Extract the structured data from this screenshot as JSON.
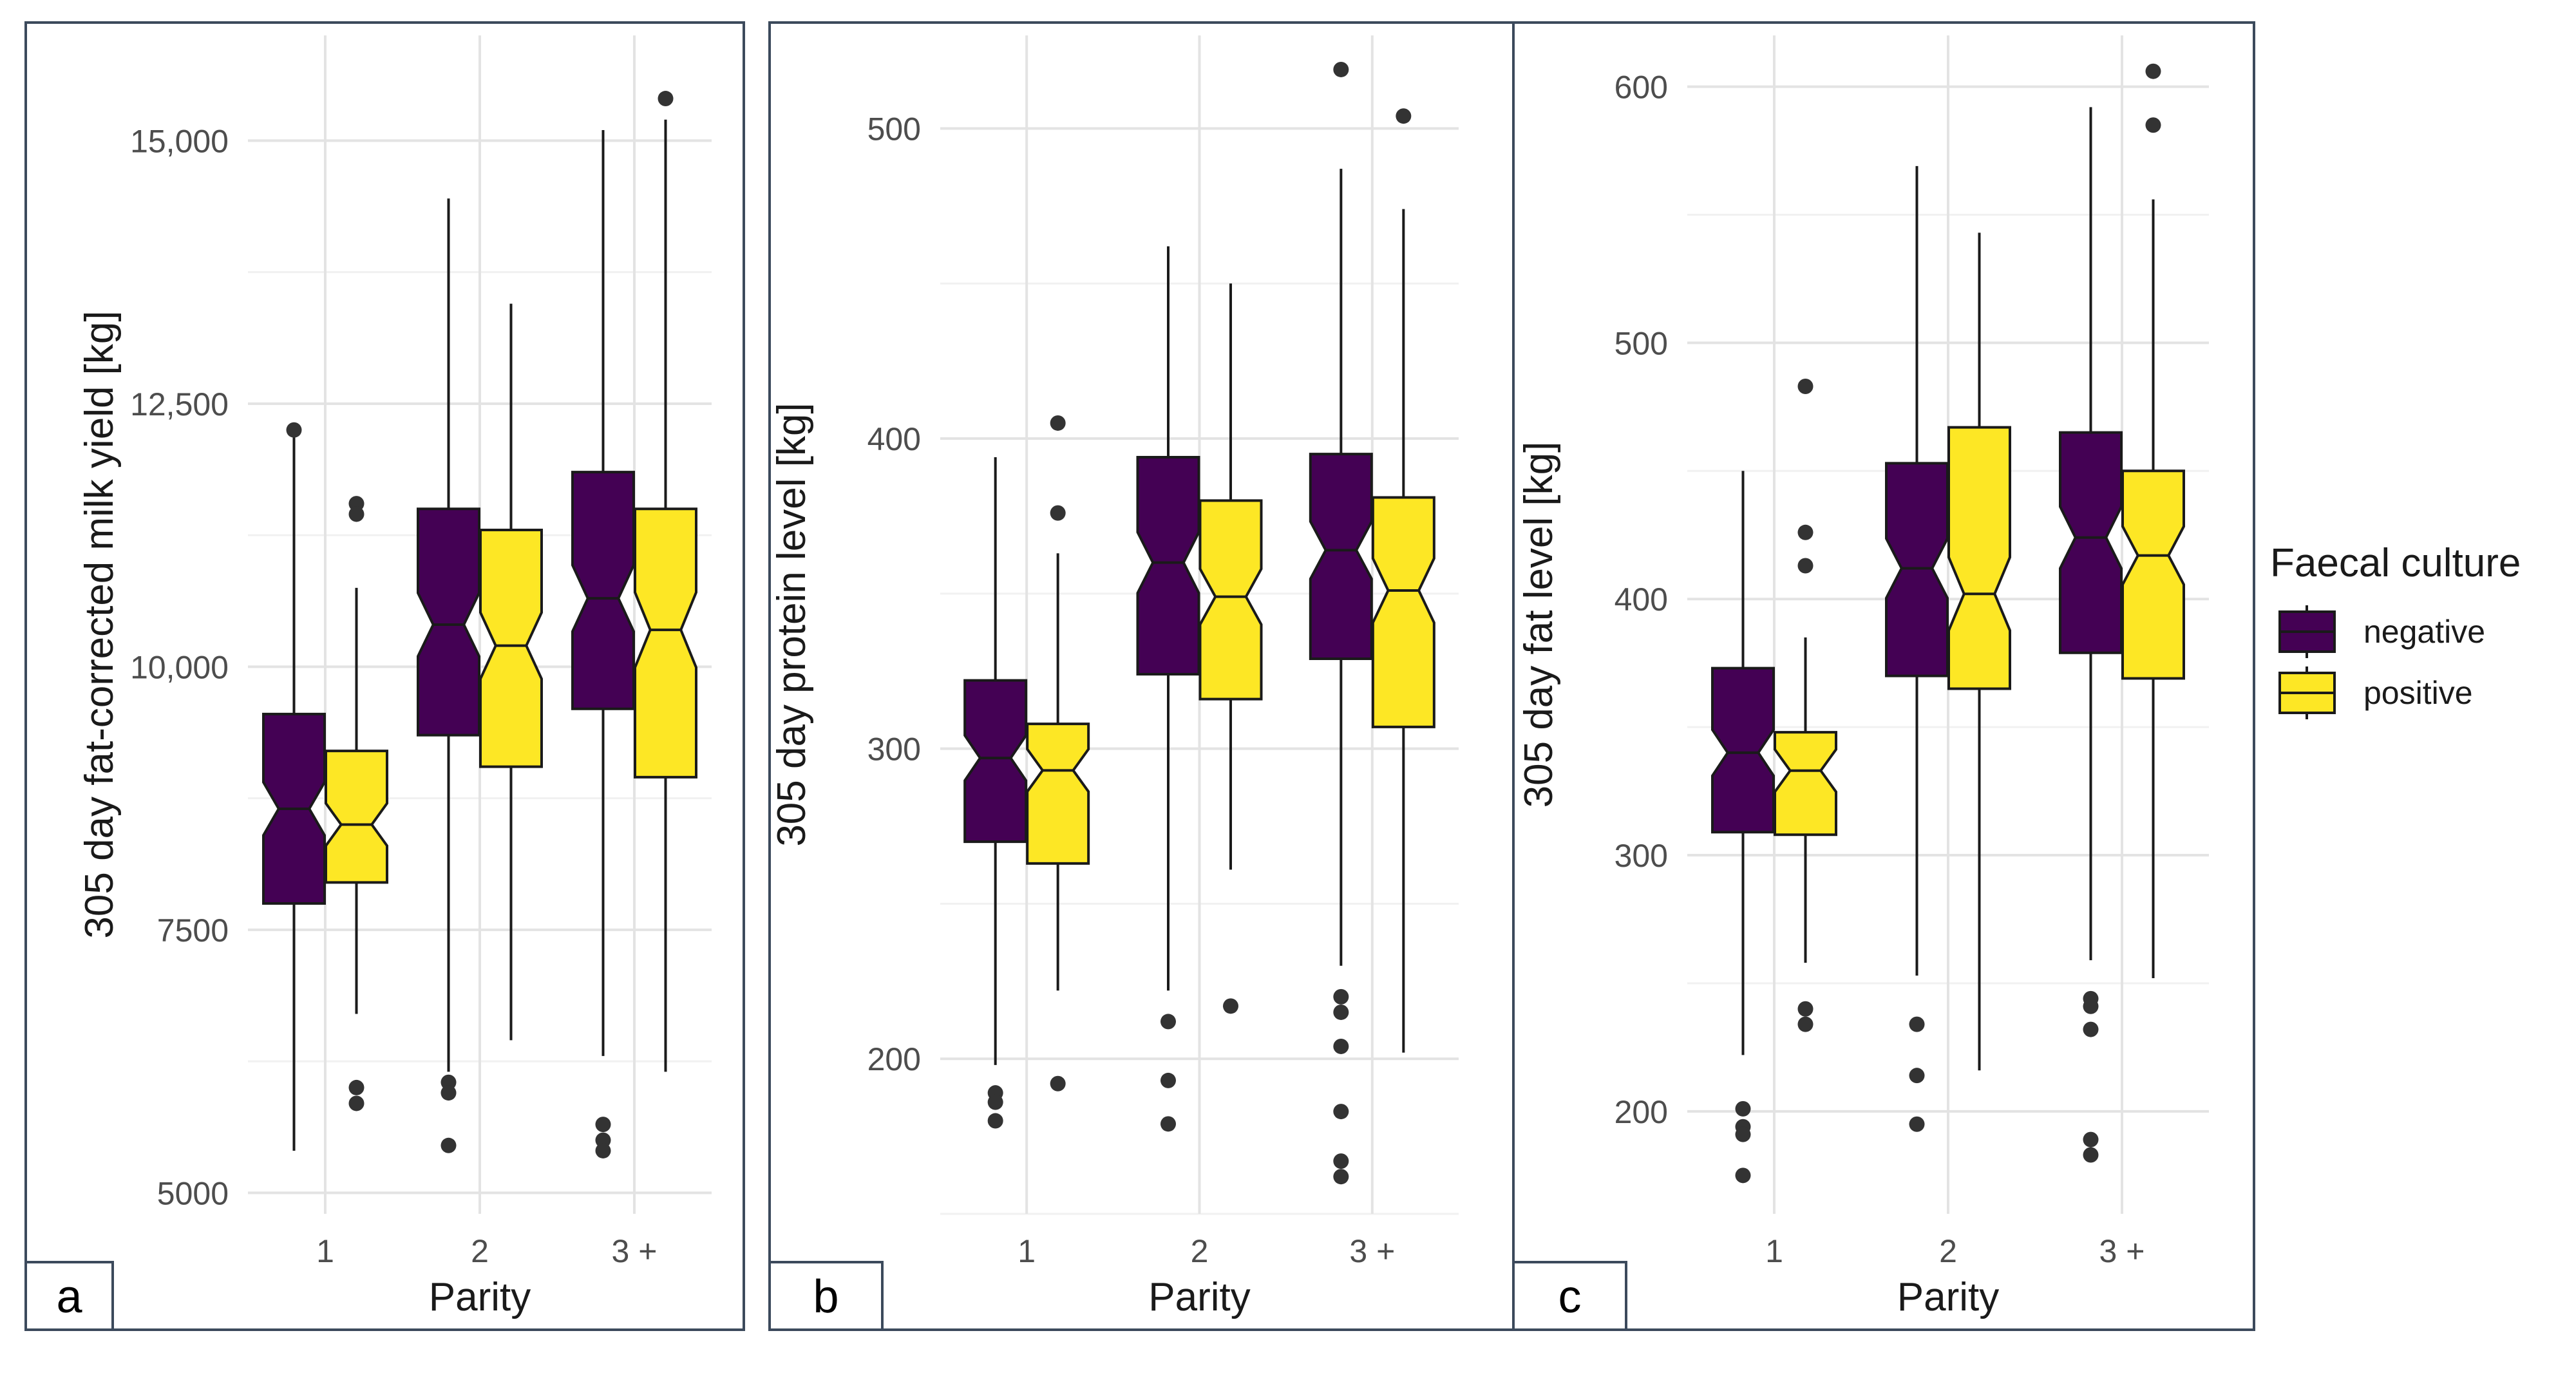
{
  "legend": {
    "title": "Faecal culture",
    "placement": "right",
    "items": [
      {
        "label": "negative",
        "color": "#440154"
      },
      {
        "label": "positive",
        "color": "#FDE725"
      }
    ]
  },
  "chart_data": [
    {
      "type": "boxplot",
      "notched": true,
      "panel_label": "a",
      "xlabel": "Parity",
      "ylabel": "305 day fat-corrected milk yield [kg]",
      "categories": [
        "1",
        "2",
        "3 +"
      ],
      "ylim": [
        4800,
        16000
      ],
      "yticks": [
        5000,
        7500,
        10000,
        12500,
        15000
      ],
      "ytick_labels": [
        "5000",
        "7500",
        "10,000",
        "12,500",
        "15,000"
      ],
      "grid": true,
      "series": [
        {
          "name": "negative",
          "color": "#440154",
          "boxes": [
            {
              "whisker_low": 5400,
              "q1": 7750,
              "median": 8650,
              "q3": 9550,
              "whisker_high": 12200,
              "outliers": [
                12250
              ]
            },
            {
              "whisker_low": 6150,
              "q1": 9350,
              "median": 10400,
              "q3": 11500,
              "whisker_high": 14450,
              "outliers": [
                6050,
                5950,
                5450
              ]
            },
            {
              "whisker_low": 6300,
              "q1": 9600,
              "median": 10650,
              "q3": 11850,
              "whisker_high": 15100,
              "outliers": [
                5650,
                5500,
                5400
              ]
            }
          ]
        },
        {
          "name": "positive",
          "color": "#FDE725",
          "boxes": [
            {
              "whisker_low": 6700,
              "q1": 7950,
              "median": 8500,
              "q3": 9200,
              "whisker_high": 10750,
              "outliers": [
                11550,
                11450,
                6000,
                5850
              ]
            },
            {
              "whisker_low": 6450,
              "q1": 9050,
              "median": 10200,
              "q3": 11300,
              "whisker_high": 13450,
              "outliers": []
            },
            {
              "whisker_low": 6150,
              "q1": 8950,
              "median": 10350,
              "q3": 11500,
              "whisker_high": 15200,
              "outliers": [
                15400
              ]
            }
          ]
        }
      ]
    },
    {
      "type": "boxplot",
      "notched": true,
      "panel_label": "b",
      "xlabel": "Parity",
      "ylabel": "305 day protein level [kg]",
      "categories": [
        "1",
        "2",
        "3 +"
      ],
      "ylim": [
        150,
        530
      ],
      "yticks": [
        200,
        300,
        400,
        500
      ],
      "ytick_labels": [
        "200",
        "300",
        "400",
        "500"
      ],
      "grid": true,
      "series": [
        {
          "name": "negative",
          "color": "#440154",
          "boxes": [
            {
              "whisker_low": 198,
              "q1": 270,
              "median": 297,
              "q3": 322,
              "whisker_high": 394,
              "outliers": [
                189,
                186,
                180
              ]
            },
            {
              "whisker_low": 222,
              "q1": 324,
              "median": 360,
              "q3": 394,
              "whisker_high": 462,
              "outliers": [
                212,
                193,
                179
              ]
            },
            {
              "whisker_low": 230,
              "q1": 329,
              "median": 364,
              "q3": 395,
              "whisker_high": 487,
              "outliers": [
                519,
                220,
                215,
                204,
                183,
                167,
                162
              ]
            }
          ]
        },
        {
          "name": "positive",
          "color": "#FDE725",
          "boxes": [
            {
              "whisker_low": 222,
              "q1": 263,
              "median": 293,
              "q3": 308,
              "whisker_high": 363,
              "outliers": [
                405,
                376,
                192
              ]
            },
            {
              "whisker_low": 261,
              "q1": 316,
              "median": 349,
              "q3": 380,
              "whisker_high": 450,
              "outliers": [
                217
              ]
            },
            {
              "whisker_low": 202,
              "q1": 307,
              "median": 351,
              "q3": 381,
              "whisker_high": 474,
              "outliers": [
                504
              ]
            }
          ]
        }
      ]
    },
    {
      "type": "boxplot",
      "notched": true,
      "panel_label": "c",
      "xlabel": "Parity",
      "ylabel": "305 day fat level [kg]",
      "categories": [
        "1",
        "2",
        "3 +"
      ],
      "ylim": [
        160,
        620
      ],
      "yticks": [
        200,
        300,
        400,
        500,
        600
      ],
      "ytick_labels": [
        "200",
        "300",
        "400",
        "500",
        "600"
      ],
      "grid": true,
      "series": [
        {
          "name": "negative",
          "color": "#440154",
          "boxes": [
            {
              "whisker_low": 222,
              "q1": 309,
              "median": 340,
              "q3": 373,
              "whisker_high": 450,
              "outliers": [
                201,
                194,
                191,
                175
              ]
            },
            {
              "whisker_low": 253,
              "q1": 370,
              "median": 412,
              "q3": 453,
              "whisker_high": 569,
              "outliers": [
                234,
                214,
                195
              ]
            },
            {
              "whisker_low": 259,
              "q1": 379,
              "median": 424,
              "q3": 465,
              "whisker_high": 592,
              "outliers": [
                244,
                241,
                232,
                189,
                183
              ]
            }
          ]
        },
        {
          "name": "positive",
          "color": "#FDE725",
          "boxes": [
            {
              "whisker_low": 258,
              "q1": 308,
              "median": 333,
              "q3": 348,
              "whisker_high": 385,
              "outliers": [
                483,
                426,
                413,
                240,
                234
              ]
            },
            {
              "whisker_low": 216,
              "q1": 365,
              "median": 402,
              "q3": 467,
              "whisker_high": 543,
              "outliers": []
            },
            {
              "whisker_low": 252,
              "q1": 369,
              "median": 417,
              "q3": 450,
              "whisker_high": 556,
              "outliers": [
                606,
                585
              ]
            }
          ]
        }
      ]
    }
  ]
}
